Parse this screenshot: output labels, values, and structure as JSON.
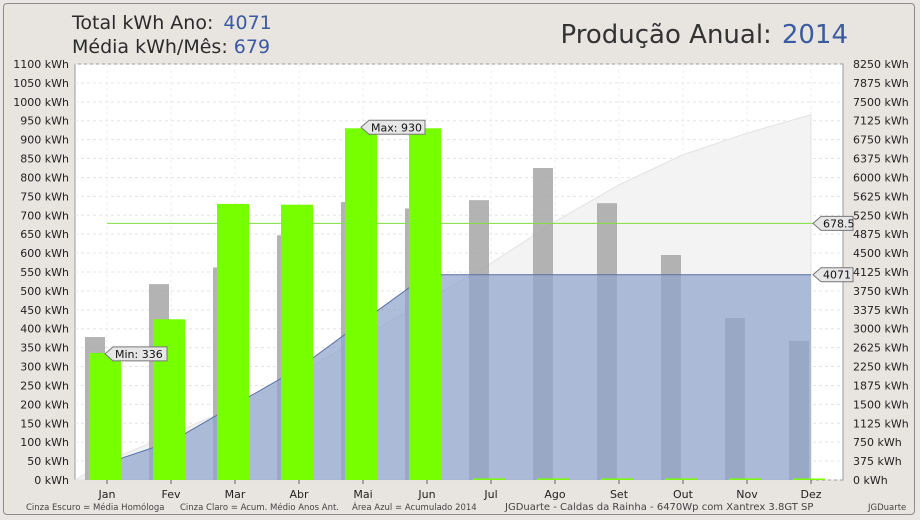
{
  "header": {
    "total_label": "Total kWh Ano:",
    "total_value": "4071",
    "avg_label": "Média kWh/Mês:",
    "avg_value": "679",
    "title_label": "Produção Anual:",
    "title_year": "2014"
  },
  "footer": {
    "legend_dark": "Cinza Escuro = Média Homóloga",
    "legend_light": "Cinza Claro = Acum. Médio Anos Ant.",
    "legend_blue": "Área Azul = Acumulado 2014",
    "system_info": "JGDuarte  -  Caldas da Rainha  -  6470Wp com Xantrex 3.8GT SP",
    "credit": "JGDuarte"
  },
  "colors": {
    "production": "#77ff00",
    "average": "#a6a6a6",
    "cumulative_area": "#8fa3cc",
    "cumulative_line": "#5470a8",
    "avg_line": "#7ddf3a",
    "prev_cumulative": "#f3f3f3"
  },
  "chart_data": {
    "type": "bar",
    "categories": [
      "Jan",
      "Fev",
      "Mar",
      "Abr",
      "Mai",
      "Jun",
      "Jul",
      "Ago",
      "Set",
      "Out",
      "Nov",
      "Dez"
    ],
    "y_left_ticks": [
      "0 kWh",
      "50 kWh",
      "100 kWh",
      "150 kWh",
      "200 kWh",
      "250 kWh",
      "300 kWh",
      "350 kWh",
      "400 kWh",
      "450 kWh",
      "500 kWh",
      "550 kWh",
      "600 kWh",
      "650 kWh",
      "700 kWh",
      "750 kWh",
      "800 kWh",
      "850 kWh",
      "900 kWh",
      "950 kWh",
      "1000 kWh",
      "1050 kWh",
      "1100 kWh"
    ],
    "y_right_ticks": [
      "0 kWh",
      "375 kWh",
      "750 kWh",
      "1125 kWh",
      "1500 kWh",
      "1875 kWh",
      "2250 kWh",
      "2625 kWh",
      "3000 kWh",
      "3375 kWh",
      "3750 kWh",
      "4125 kWh",
      "4500 kWh",
      "4875 kWh",
      "5250 kWh",
      "5625 kWh",
      "6000 kWh",
      "6375 kWh",
      "6750 kWh",
      "7125 kWh",
      "7500 kWh",
      "7875 kWh",
      "8250 kWh"
    ],
    "ylim_left": [
      0,
      1100
    ],
    "ylim_right": [
      0,
      8250
    ],
    "production_2014": [
      336,
      425,
      730,
      728,
      930,
      930,
      0,
      0,
      0,
      0,
      0,
      0
    ],
    "average_homologous": [
      378,
      518,
      562,
      647,
      735,
      718,
      740,
      825,
      732,
      595,
      428,
      368
    ],
    "cumulative_2014": [
      336,
      761,
      1491,
      2219,
      3149,
      4071,
      4071,
      4071,
      4071,
      4071,
      4071,
      4071
    ],
    "prev_years_cumulative": [
      378,
      896,
      1458,
      2105,
      2840,
      3558,
      4298,
      5123,
      5855,
      6450,
      6878,
      7246
    ],
    "monthly_average": 678.5,
    "annotations": {
      "max": "Max: 930",
      "min": "Min: 336",
      "avg_marker": "678.5",
      "total_marker": "4071"
    },
    "grid": true
  }
}
